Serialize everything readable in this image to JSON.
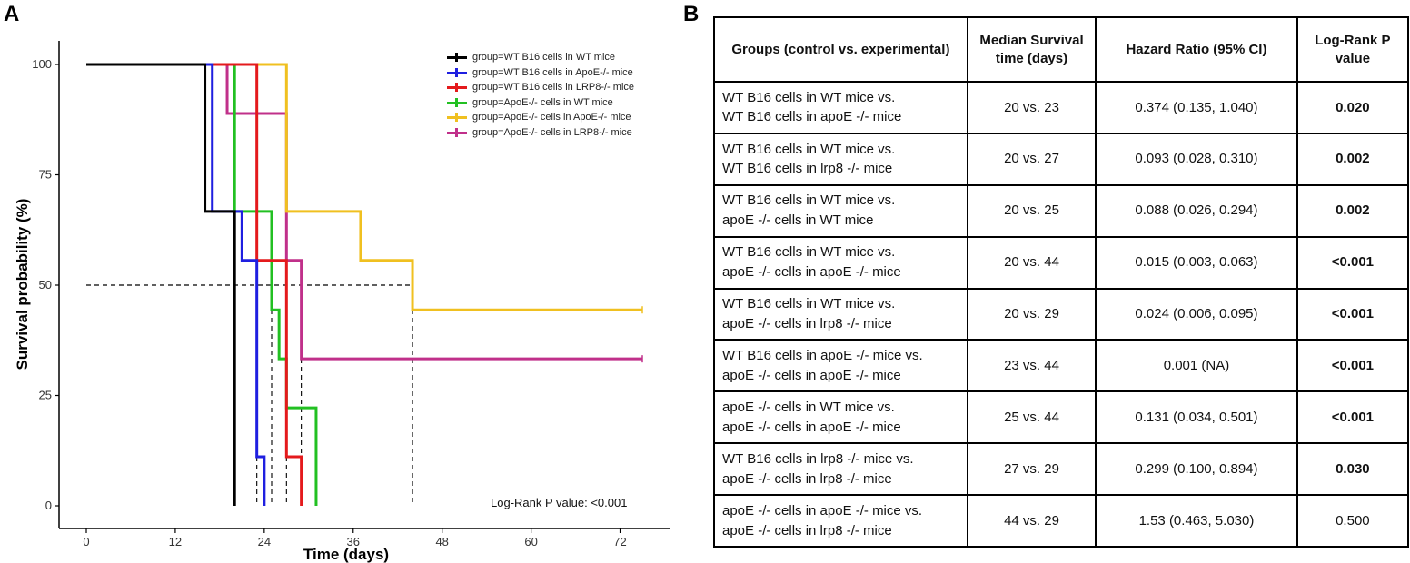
{
  "panel_a_label": "A",
  "panel_b_label": "B",
  "chart_data": {
    "type": "line",
    "subtype": "kaplan-meier step",
    "xlabel": "Time (days)",
    "ylabel": "Survival probability (%)",
    "xlim": [
      0,
      75
    ],
    "ylim": [
      0,
      100
    ],
    "x_ticks": [
      0,
      12,
      24,
      36,
      48,
      60,
      72
    ],
    "y_ticks": [
      0,
      25,
      50,
      75,
      100
    ],
    "median_line": 50,
    "legend_position": "top-right",
    "annotation": "Log-Rank P value: <0.001",
    "series": [
      {
        "name": "group=WT B16 cells in WT mice",
        "color": "#000000",
        "median": 20,
        "x": [
          0,
          16,
          20
        ],
        "y": [
          100,
          66.7,
          0
        ]
      },
      {
        "name": "group=WT B16 cells in ApoE-/- mice",
        "color": "#1f1fe0",
        "median": 23,
        "x": [
          0,
          17,
          21,
          23,
          24
        ],
        "y": [
          100,
          66.7,
          55.6,
          11.1,
          0
        ]
      },
      {
        "name": "group=WT B16 cells in LRP8-/- mice",
        "color": "#e41a1c",
        "median": 27,
        "x": [
          0,
          23,
          27,
          29
        ],
        "y": [
          100,
          55.6,
          11.1,
          0
        ]
      },
      {
        "name": "group=ApoE-/- cells in WT mice",
        "color": "#22c022",
        "median": 25,
        "x": [
          0,
          20,
          25,
          26,
          27,
          29,
          31
        ],
        "y": [
          100,
          66.7,
          44.4,
          33.3,
          22.2,
          22.2,
          0
        ]
      },
      {
        "name": "group=ApoE-/- cells in ApoE-/- mice",
        "color": "#f0c020",
        "median": 44,
        "end": 75,
        "x": [
          0,
          27,
          37,
          44
        ],
        "y": [
          100,
          66.7,
          55.6,
          44.4
        ]
      },
      {
        "name": "group=ApoE-/- cells in LRP8-/- mice",
        "color": "#c0308a",
        "median": 29,
        "end": 75,
        "x": [
          0,
          19,
          27,
          29
        ],
        "y": [
          100,
          88.9,
          55.6,
          33.3
        ]
      }
    ]
  },
  "table": {
    "headers": [
      "Groups (control vs. experimental)",
      "Median Survival time (days)",
      "Hazard Ratio (95% CI)",
      "Log-Rank P value"
    ],
    "rows": [
      {
        "group_line1": "WT B16 cells in WT mice vs.",
        "group_line2": "WT B16 cells in apoE -/- mice",
        "median": "20 vs. 23",
        "hr": "0.374 (0.135, 1.040)",
        "p": "0.020"
      },
      {
        "group_line1": "WT B16 cells in WT mice vs.",
        "group_line2": "WT B16 cells in lrp8 -/- mice",
        "median": "20 vs. 27",
        "hr": "0.093 (0.028, 0.310)",
        "p": "0.002"
      },
      {
        "group_line1": "WT B16 cells in WT mice vs.",
        "group_line2": "apoE -/- cells in WT mice",
        "median": "20 vs. 25",
        "hr": "0.088 (0.026, 0.294)",
        "p": "0.002"
      },
      {
        "group_line1": "WT B16 cells in WT mice vs.",
        "group_line2": "apoE -/- cells in apoE -/- mice",
        "median": "20 vs. 44",
        "hr": "0.015 (0.003, 0.063)",
        "p": "<0.001"
      },
      {
        "group_line1": "WT B16 cells in WT mice vs.",
        "group_line2": "apoE -/- cells in lrp8 -/- mice",
        "median": "20 vs. 29",
        "hr": "0.024 (0.006, 0.095)",
        "p": "<0.001"
      },
      {
        "group_line1": "WT B16 cells in apoE -/- mice vs.",
        "group_line2": "apoE -/- cells in apoE -/- mice",
        "median": "23 vs. 44",
        "hr": "0.001 (NA)",
        "p": "<0.001"
      },
      {
        "group_line1": "apoE -/- cells in WT mice vs.",
        "group_line2": "apoE -/- cells in apoE -/- mice",
        "median": "25 vs. 44",
        "hr": "0.131 (0.034, 0.501)",
        "p": "<0.001"
      },
      {
        "group_line1": "WT B16 cells in lrp8 -/- mice vs.",
        "group_line2": "apoE -/- cells in lrp8 -/- mice",
        "median": "27 vs. 29",
        "hr": "0.299 (0.100, 0.894)",
        "p": "0.030"
      },
      {
        "group_line1": "apoE -/- cells in apoE -/- mice vs.",
        "group_line2": "apoE -/- cells in lrp8 -/- mice",
        "median": "44 vs. 29",
        "hr": "1.53 (0.463, 5.030)",
        "p": "0.500"
      }
    ],
    "significant_rows": [
      0,
      1,
      2,
      3,
      4,
      5,
      6,
      7
    ]
  }
}
